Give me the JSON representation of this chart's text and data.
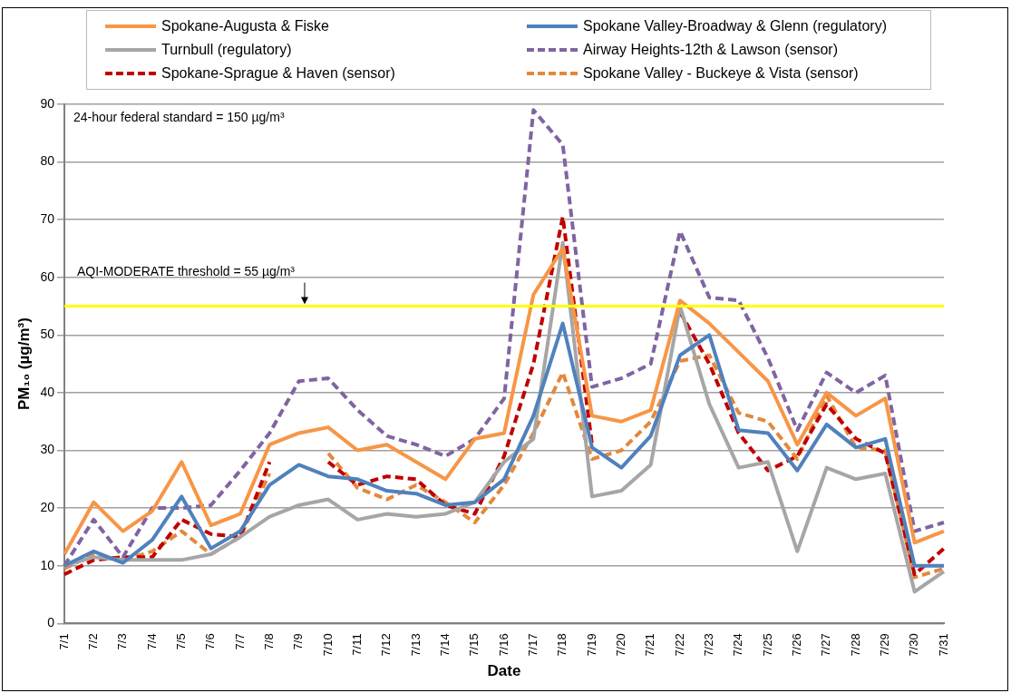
{
  "chart_data": {
    "type": "line",
    "xlabel": "Date",
    "ylabel": "PM₁₀ (µg/m³)",
    "categories": [
      "7/1",
      "7/2",
      "7/3",
      "7/4",
      "7/5",
      "7/6",
      "7/7",
      "7/8",
      "7/9",
      "7/10",
      "7/11",
      "7/12",
      "7/13",
      "7/14",
      "7/15",
      "7/16",
      "7/17",
      "7/18",
      "7/19",
      "7/20",
      "7/21",
      "7/22",
      "7/23",
      "7/24",
      "7/25",
      "7/26",
      "7/27",
      "7/28",
      "7/29",
      "7/30",
      "7/31"
    ],
    "series": [
      {
        "name": "Spokane-Augusta & Fiske",
        "color": "#f79646",
        "line_style": "solid",
        "values": [
          12,
          21,
          16,
          19.5,
          28,
          17,
          19,
          31,
          33,
          34,
          30,
          31,
          28,
          25,
          32,
          33,
          57,
          65,
          36,
          35,
          37,
          56,
          52,
          47,
          42,
          31,
          40,
          36,
          39,
          14,
          16
        ]
      },
      {
        "name": "Spokane Valley-Broadway & Glenn (regulatory)",
        "color": "#4f81bd",
        "line_style": "solid",
        "values": [
          10,
          12.5,
          10.5,
          14.5,
          22,
          13,
          16,
          24,
          27.5,
          25.5,
          25,
          23,
          22.5,
          20.5,
          21,
          25,
          36,
          52,
          30.5,
          27,
          32.5,
          46.5,
          50,
          33.5,
          33,
          26.5,
          34.5,
          30.5,
          32,
          10,
          10
        ]
      },
      {
        "name": "Turnbull (regulatory)",
        "color": "#a6a6a6",
        "line_style": "solid",
        "values": [
          10,
          11.5,
          11,
          11,
          11,
          12,
          15,
          18.5,
          20.5,
          21.5,
          18,
          19,
          18.5,
          19,
          21,
          28,
          32,
          66,
          22,
          23,
          27.5,
          55,
          38,
          27,
          28,
          12.5,
          27,
          25,
          26,
          5.5,
          9
        ]
      },
      {
        "name": "Airway Heights-12th & Lawson (sensor)",
        "color": "#8064a2",
        "line_style": "dashed",
        "values": [
          10,
          18,
          11.5,
          20,
          20,
          20.5,
          26.5,
          33,
          42,
          42.5,
          37,
          32.5,
          31,
          29,
          32,
          39,
          89,
          83,
          41,
          42.5,
          45,
          68,
          56.5,
          56,
          46,
          33.5,
          43.5,
          40,
          43,
          16,
          17.5
        ]
      },
      {
        "name": "Spokane-Sprague & Haven (sensor)",
        "color": "#c00000",
        "line_style": "dashed",
        "values": [
          8.5,
          11,
          11.5,
          11.5,
          18,
          15.5,
          15,
          28,
          null,
          28,
          24,
          25.5,
          25,
          20.5,
          19,
          29,
          45,
          70.5,
          31,
          null,
          null,
          54,
          45,
          33,
          26.5,
          29,
          38,
          32,
          29.5,
          8.5,
          13
        ]
      },
      {
        "name": "Spokane Valley - Buckeye & Vista (sensor)",
        "color": "#e2893b",
        "line_style": "dashed",
        "values": [
          9.5,
          12,
          11,
          12.5,
          16,
          12,
          15,
          26,
          null,
          29.5,
          23.5,
          21.5,
          24,
          21,
          17.5,
          24,
          33,
          43.5,
          28.5,
          30,
          35,
          45.5,
          46.5,
          36.5,
          35,
          28.5,
          39.5,
          30.5,
          30,
          8,
          9.5
        ]
      }
    ],
    "ylim": [
      0,
      90
    ],
    "yticks": [
      0,
      10,
      20,
      30,
      40,
      50,
      60,
      70,
      80,
      90
    ],
    "grid": "y",
    "legend": "top",
    "marker": "none",
    "ref_lines": [
      {
        "axis": "y",
        "value": 55,
        "label": "AQI-MODERATE threshold = 55 µg/m³",
        "color": "#ffff00",
        "line_style": "solid"
      }
    ],
    "annotations": [
      "24-hour federal standard = 150 µg/m³"
    ]
  }
}
